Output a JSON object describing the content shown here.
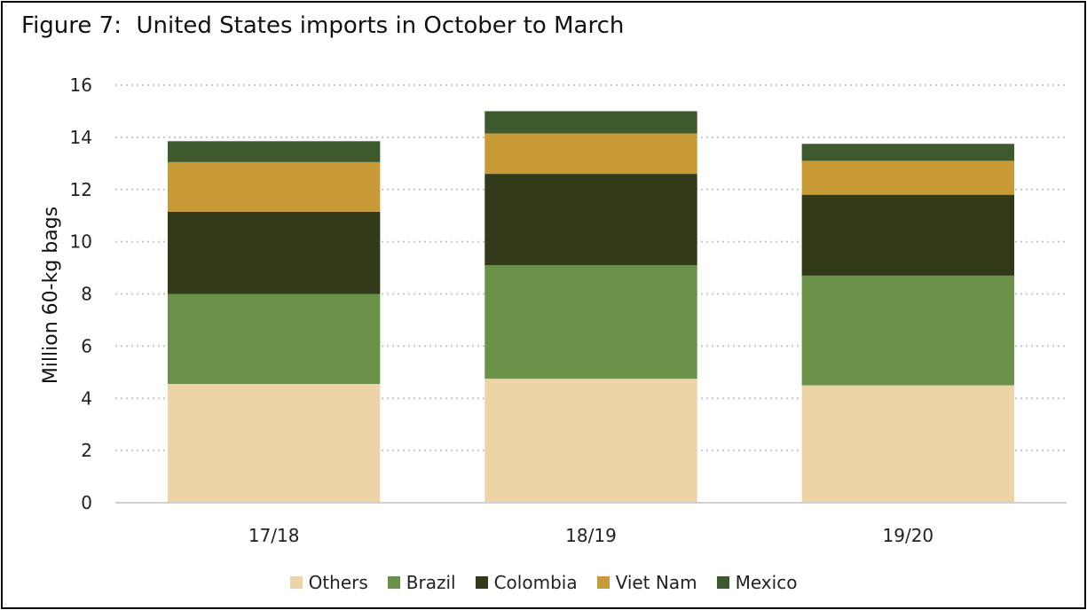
{
  "chart_data": {
    "type": "bar",
    "stacked": true,
    "title": "Figure 7:  United States imports in October to March",
    "xlabel": "",
    "ylabel": "Million 60-kg bags",
    "ylim": [
      0,
      16
    ],
    "yticks": [
      0,
      2,
      4,
      6,
      8,
      10,
      12,
      14,
      16
    ],
    "grid": true,
    "legend_position": "bottom",
    "categories": [
      "17/18",
      "18/19",
      "19/20"
    ],
    "series": [
      {
        "name": "Others",
        "color": "#ecd4a7",
        "values": [
          4.55,
          4.75,
          4.5
        ]
      },
      {
        "name": "Brazil",
        "color": "#6a9148",
        "values": [
          3.45,
          4.35,
          4.2
        ]
      },
      {
        "name": "Colombia",
        "color": "#323a19",
        "values": [
          3.15,
          3.5,
          3.1
        ]
      },
      {
        "name": "Viet Nam",
        "color": "#c89a35",
        "values": [
          1.9,
          1.55,
          1.3
        ]
      },
      {
        "name": "Mexico",
        "color": "#3d5a2e",
        "values": [
          0.8,
          0.85,
          0.65
        ]
      }
    ]
  }
}
